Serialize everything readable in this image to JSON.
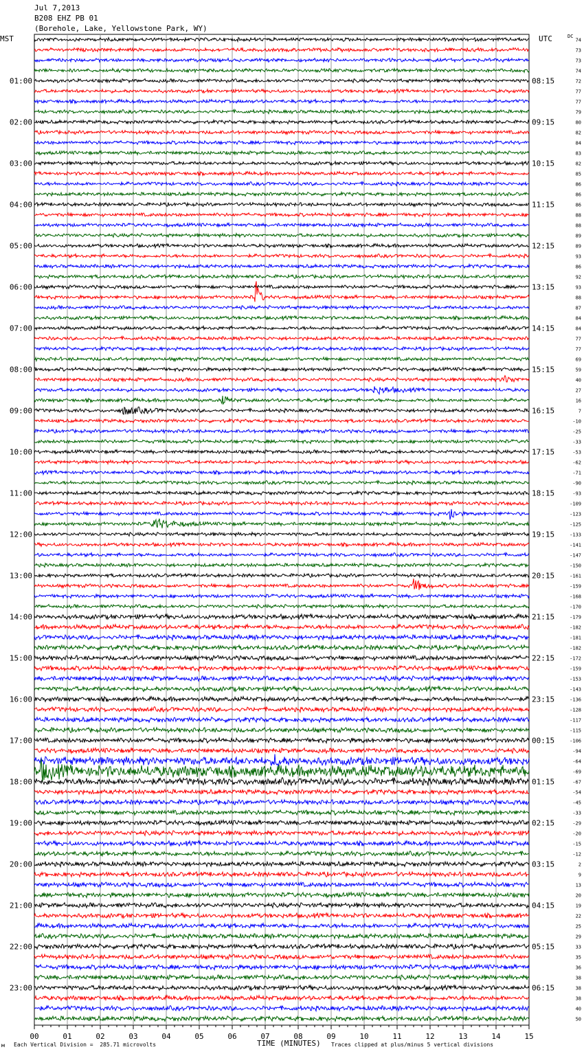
{
  "header": {
    "date": "Jul 7,2013",
    "station": "B208 EHZ PB 01",
    "location": "(Borehole, Lake, Yellowstone Park, WY)"
  },
  "labels": {
    "left_tz": "MST",
    "right_tz": "UTC",
    "dc": "DC"
  },
  "footer": {
    "scale_note": "Each Vertical Division =  285.71 microvolts",
    "clip_note": "Traces clipped at plus/minus 5 vertical divisions",
    "mark": "м"
  },
  "chart_data": {
    "type": "helicorder",
    "xlabel": "TIME (MINUTES)",
    "xlim": [
      0,
      15
    ],
    "x_ticks": [
      "00",
      "01",
      "02",
      "03",
      "04",
      "05",
      "06",
      "07",
      "08",
      "09",
      "10",
      "11",
      "12",
      "13",
      "14",
      "15"
    ],
    "trace_colors": [
      "#000000",
      "#ff0000",
      "#0000ff",
      "#006400"
    ],
    "left_hour_labels": [
      "01:00",
      "02:00",
      "03:00",
      "04:00",
      "05:00",
      "06:00",
      "07:00",
      "08:00",
      "09:00",
      "10:00",
      "11:00",
      "12:00",
      "13:00",
      "14:00",
      "15:00",
      "16:00",
      "17:00",
      "18:00",
      "19:00",
      "20:00",
      "21:00",
      "22:00",
      "23:00"
    ],
    "right_hour_labels": [
      "08:15",
      "09:15",
      "10:15",
      "11:15",
      "12:15",
      "13:15",
      "14:15",
      "15:15",
      "16:15",
      "17:15",
      "18:15",
      "19:15",
      "20:15",
      "21:15",
      "22:15",
      "23:15",
      "00:15",
      "01:15",
      "02:15",
      "03:15",
      "04:15",
      "05:15",
      "06:15"
    ],
    "dc_offsets": [
      "74",
      "73",
      "73",
      "74",
      "72",
      "77",
      "77",
      "79",
      "80",
      "82",
      "84",
      "83",
      "82",
      "85",
      "86",
      "86",
      "86",
      "88",
      "88",
      "89",
      "89",
      "93",
      "86",
      "92",
      "93",
      "88",
      "87",
      "84",
      "84",
      "77",
      "77",
      "69",
      "59",
      "40",
      "27",
      "16",
      "7",
      "-10",
      "-25",
      "-33",
      "-53",
      "-62",
      "-71",
      "-90",
      "-93",
      "-109",
      "-123",
      "-125",
      "-133",
      "-141",
      "-147",
      "-150",
      "-161",
      "-159",
      "-168",
      "-170",
      "-179",
      "-182",
      "-181",
      "-182",
      "-172",
      "-159",
      "-153",
      "-143",
      "-136",
      "-128",
      "-117",
      "-115",
      "-106",
      "-94",
      "-64",
      "-69",
      "-67",
      "-54",
      "-45",
      "-33",
      "-29",
      "-20",
      "-15",
      "-12",
      "2",
      "9",
      "13",
      "20",
      "19",
      "22",
      "25",
      "29",
      "33",
      "35",
      "36",
      "38",
      "38",
      "38",
      "40",
      "50"
    ],
    "noise_levels": [
      3,
      3,
      3,
      3,
      3,
      3,
      3,
      3,
      3,
      3,
      3,
      3,
      3,
      3,
      3,
      3,
      3,
      3,
      3,
      3,
      3,
      3,
      3,
      3,
      3,
      3,
      3,
      3,
      3,
      3,
      3,
      3,
      3,
      3,
      3,
      3,
      3,
      3,
      3,
      3,
      3,
      3,
      3,
      3,
      3,
      3,
      3,
      3,
      3,
      3,
      3,
      3,
      3,
      3,
      3,
      3,
      4,
      4,
      4,
      4,
      4,
      4,
      4,
      4,
      4,
      4,
      4,
      4,
      4,
      4,
      7,
      10,
      6,
      4,
      4,
      4,
      4,
      4,
      4,
      4,
      4,
      4,
      4,
      4,
      4,
      4,
      4,
      4,
      4,
      4,
      4,
      4,
      4,
      4,
      4,
      4
    ],
    "events": [
      {
        "trace": 25,
        "minute": 6.7,
        "amplitude": 30,
        "duration_min": 0.3
      },
      {
        "trace": 35,
        "minute": 5.7,
        "amplitude": 6,
        "duration_min": 0.5
      },
      {
        "trace": 36,
        "minute": 2.7,
        "amplitude": 5,
        "duration_min": 2.0
      },
      {
        "trace": 33,
        "minute": 14.2,
        "amplitude": 5,
        "duration_min": 1.0
      },
      {
        "trace": 34,
        "minute": 10.3,
        "amplitude": 5,
        "duration_min": 1.5
      },
      {
        "trace": 46,
        "minute": 12.6,
        "amplitude": 12,
        "duration_min": 0.4
      },
      {
        "trace": 47,
        "minute": 3.6,
        "amplitude": 8,
        "duration_min": 1.5
      },
      {
        "trace": 53,
        "minute": 11.5,
        "amplitude": 9,
        "duration_min": 0.7
      },
      {
        "trace": 71,
        "minute": 0.2,
        "amplitude": 10,
        "duration_min": 1.0
      },
      {
        "trace": 70,
        "minute": 7.3,
        "amplitude": 8,
        "duration_min": 0.5
      }
    ]
  }
}
